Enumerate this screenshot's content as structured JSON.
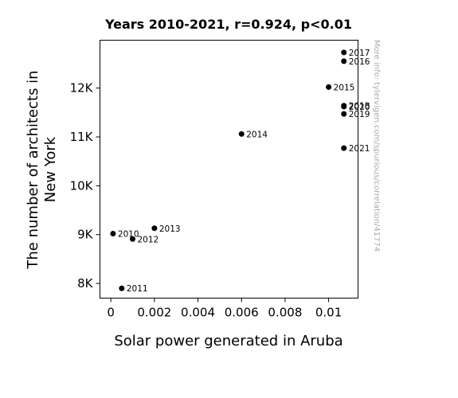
{
  "chart_data": {
    "type": "scatter",
    "title": "Years 2010-2021, r=0.924, p<0.01",
    "xlabel": "Solar power generated in Aruba",
    "ylabel": [
      "The number of architects in",
      "New York"
    ],
    "xlim": [
      -0.0005,
      0.01135
    ],
    "ylim": [
      7700,
      12980
    ],
    "x_ticks": [
      {
        "value": 0,
        "label": "0"
      },
      {
        "value": 0.002,
        "label": "0.002"
      },
      {
        "value": 0.004,
        "label": "0.004"
      },
      {
        "value": 0.006,
        "label": "0.006"
      },
      {
        "value": 0.008,
        "label": "0.008"
      },
      {
        "value": 0.01,
        "label": "0.01"
      }
    ],
    "y_ticks": [
      {
        "value": 8000,
        "label": "8K"
      },
      {
        "value": 9000,
        "label": "9K"
      },
      {
        "value": 10000,
        "label": "10K"
      },
      {
        "value": 11000,
        "label": "11K"
      },
      {
        "value": 12000,
        "label": "12K"
      }
    ],
    "points": [
      {
        "label": "2010",
        "x": 0.0001,
        "y": 9020
      },
      {
        "label": "2011",
        "x": 0.0005,
        "y": 7900
      },
      {
        "label": "2012",
        "x": 0.001,
        "y": 8910
      },
      {
        "label": "2013",
        "x": 0.002,
        "y": 9130
      },
      {
        "label": "2014",
        "x": 0.006,
        "y": 11060
      },
      {
        "label": "2015",
        "x": 0.01,
        "y": 12020
      },
      {
        "label": "2016",
        "x": 0.0107,
        "y": 12550
      },
      {
        "label": "2017",
        "x": 0.0107,
        "y": 12730
      },
      {
        "label": "2018",
        "x": 0.0107,
        "y": 11640
      },
      {
        "label": "2019",
        "x": 0.0107,
        "y": 11470
      },
      {
        "label": "2020",
        "x": 0.0107,
        "y": 11620
      },
      {
        "label": "2021",
        "x": 0.0107,
        "y": 10770
      }
    ],
    "point_color": "#000000",
    "grid": false,
    "watermark": "More info: tylervigen.com/spurious/correlation/41774"
  }
}
